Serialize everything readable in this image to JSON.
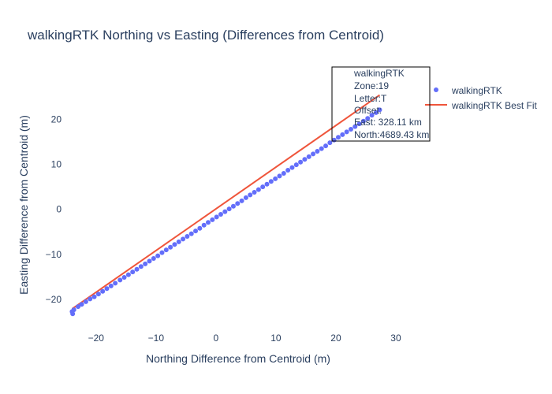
{
  "chart_data": {
    "type": "scatter",
    "title": "walkingRTK Northing vs Easting (Differences from Centroid)",
    "xlabel": "Northing Difference from Centroid (m)",
    "ylabel": "Easting Difference from Centroid (m)",
    "xlim": [
      -25.5,
      35
    ],
    "ylim": [
      -27,
      32.5
    ],
    "x_ticks": [
      -20,
      -10,
      0,
      10,
      20,
      30
    ],
    "y_ticks": [
      -20,
      -10,
      0,
      10,
      20
    ],
    "x_tick_labels": [
      "−20",
      "−10",
      "0",
      "10",
      "20",
      "30"
    ],
    "y_tick_labels": [
      "−20",
      "−10",
      "0",
      "10",
      "20"
    ],
    "grid": false,
    "legend": {
      "placement": "top-right",
      "entries": [
        "walkingRTK",
        "walkingRTK Best Fit"
      ]
    },
    "series": [
      {
        "name": "walkingRTK",
        "kind": "markers",
        "color": "#636efa",
        "x": [
          -24.0,
          -23.9,
          -23.7,
          -23.0,
          -22.4,
          -21.7,
          -21.0,
          -20.3,
          -19.6,
          -18.9,
          -18.2,
          -17.5,
          -16.8,
          -16.0,
          -15.3,
          -14.6,
          -13.9,
          -13.2,
          -12.5,
          -11.8,
          -11.1,
          -10.4,
          -9.7,
          -9.0,
          -8.3,
          -7.6,
          -6.9,
          -6.2,
          -5.5,
          -4.8,
          -4.1,
          -3.4,
          -2.7,
          -2.0,
          -1.3,
          -0.6,
          0.1,
          0.8,
          1.5,
          2.2,
          2.9,
          3.6,
          4.3,
          5.0,
          5.7,
          6.4,
          7.1,
          7.8,
          8.5,
          9.2,
          9.9,
          10.6,
          11.3,
          12.0,
          12.7,
          13.4,
          14.1,
          14.8,
          15.5,
          16.2,
          16.9,
          17.6,
          18.3,
          19.0,
          19.7,
          20.4,
          21.1,
          21.8,
          22.5,
          23.2,
          23.9,
          24.6,
          25.3,
          26.0,
          26.7,
          27.3
        ],
        "y": [
          -22.7,
          -23.2,
          -22.3,
          -21.6,
          -21.1,
          -20.5,
          -19.9,
          -19.4,
          -18.8,
          -18.2,
          -17.6,
          -17.0,
          -16.4,
          -15.7,
          -15.1,
          -14.5,
          -13.9,
          -13.3,
          -12.7,
          -12.1,
          -11.5,
          -10.9,
          -10.3,
          -9.6,
          -9.0,
          -8.4,
          -7.8,
          -7.2,
          -6.6,
          -6.0,
          -5.4,
          -4.8,
          -4.2,
          -3.5,
          -2.9,
          -2.3,
          -1.7,
          -1.1,
          -0.5,
          0.1,
          0.7,
          1.3,
          1.9,
          2.6,
          3.2,
          3.8,
          4.4,
          5.0,
          5.6,
          6.2,
          6.8,
          7.4,
          8.0,
          8.7,
          9.3,
          9.9,
          10.5,
          11.1,
          11.7,
          12.3,
          12.9,
          13.5,
          14.1,
          14.8,
          15.4,
          16.0,
          16.6,
          17.2,
          17.8,
          18.4,
          19.0,
          19.6,
          20.2,
          20.9,
          21.5,
          22.1
        ]
      },
      {
        "name": "walkingRTK Best Fit",
        "kind": "line",
        "color": "#ef553b",
        "x": [
          -24.0,
          27.3
        ],
        "y": [
          -22.1,
          25.4
        ]
      }
    ],
    "annotation": {
      "lines": [
        "walkingRTK",
        "Zone:19",
        "Letter:T",
        "Offset:",
        "East: 328.11 km",
        "North:4689.43 km"
      ]
    }
  }
}
